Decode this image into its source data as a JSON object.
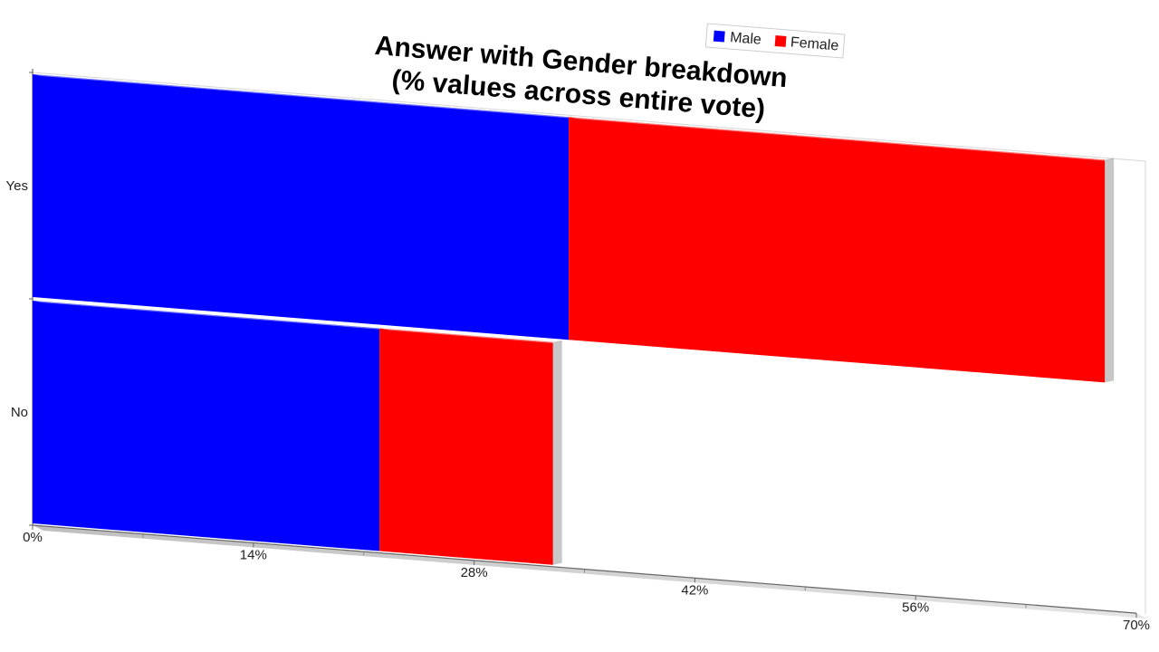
{
  "chart_data": {
    "type": "bar",
    "orientation": "horizontal",
    "stacked": true,
    "title": [
      "Answer with Gender breakdown",
      "(% values across entire vote)"
    ],
    "categories": [
      "Yes",
      "No"
    ],
    "series": [
      {
        "name": "Male",
        "color": "#0000ff",
        "values": [
          34,
          22
        ]
      },
      {
        "name": "Female",
        "color": "#ff0000",
        "values": [
          34,
          11
        ]
      }
    ],
    "xlim": [
      0,
      70
    ],
    "x_ticks": [
      "0%",
      "14%",
      "28%",
      "42%",
      "56%",
      "70%"
    ],
    "legend_position": "top-right",
    "grid": false,
    "view": "3d-perspective"
  }
}
